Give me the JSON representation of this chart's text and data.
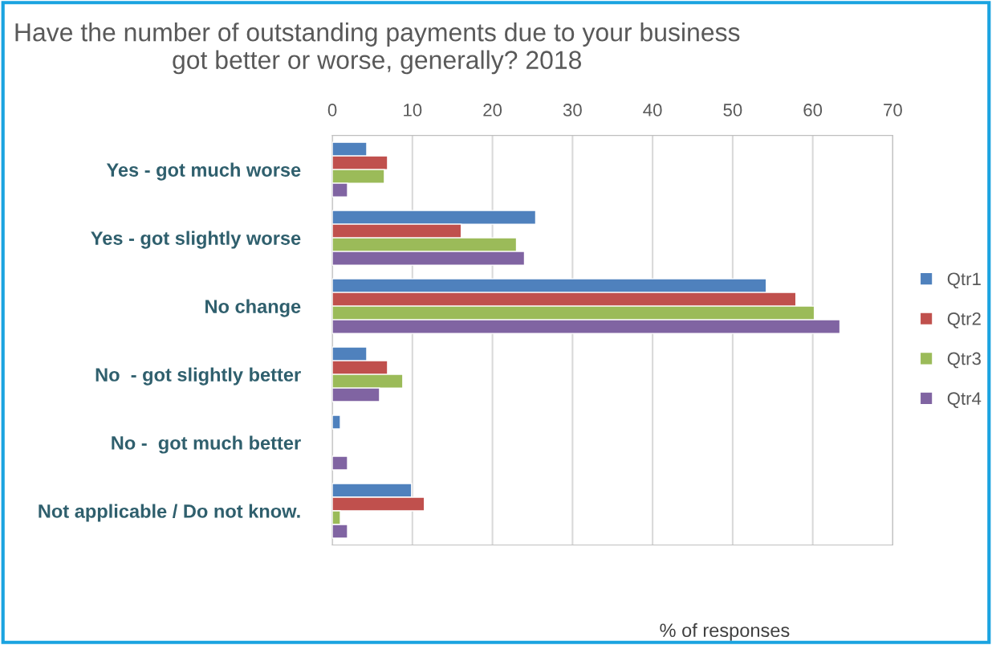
{
  "chart_data": {
    "type": "bar",
    "orientation": "horizontal",
    "title": "Have the number of outstanding payments due to your business got better or worse, generally? 2018",
    "xlabel": "% of responses",
    "categories": [
      "Yes - got much worse",
      "Yes - got slightly worse",
      "No change",
      "No  - got slightly better",
      "No -  got much better",
      "Not applicable / Do not know."
    ],
    "series": [
      {
        "name": "Qtr1",
        "color": "#4f81bd",
        "values": [
          4.3,
          25.4,
          54.2,
          4.3,
          1.0,
          9.9
        ]
      },
      {
        "name": "Qtr2",
        "color": "#c0504d",
        "values": [
          6.9,
          16.1,
          57.9,
          6.9,
          null,
          11.5
        ]
      },
      {
        "name": "Qtr3",
        "color": "#9bbb59",
        "values": [
          6.5,
          23.0,
          60.2,
          8.8,
          null,
          1.0
        ]
      },
      {
        "name": "Qtr4",
        "color": "#8064a2",
        "values": [
          1.9,
          24.0,
          63.4,
          5.9,
          1.9,
          1.9
        ]
      }
    ],
    "xlim": [
      0,
      70
    ],
    "xticks": [
      0,
      10,
      20,
      30,
      40,
      50,
      60,
      70
    ],
    "grid": "x",
    "legend": "right"
  }
}
